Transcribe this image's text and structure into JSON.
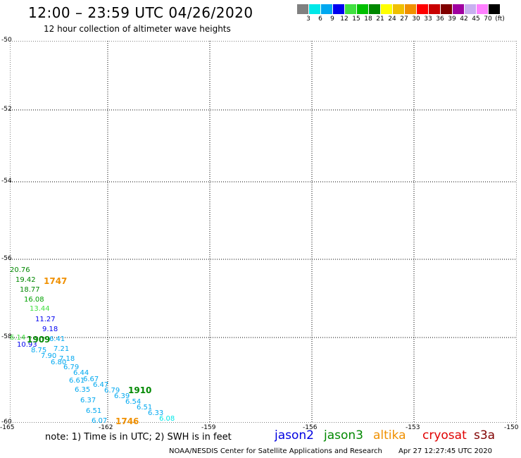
{
  "header": {
    "title": "12:00 – 23:59 UTC 04/26/2020",
    "subtitle": "12 hour collection of altimeter wave heights"
  },
  "legend": {
    "colors": [
      "#808080",
      "#00e8e8",
      "#00a8f0",
      "#0000f0",
      "#40e040",
      "#00c000",
      "#008800",
      "#ffff00",
      "#f0c000",
      "#f09000",
      "#ff0000",
      "#c80000",
      "#800000",
      "#a000a0",
      "#c8b0f0",
      "#ff80ff",
      "#000000"
    ],
    "labels": [
      "3",
      "6",
      "9",
      "12",
      "15",
      "18",
      "21",
      "24",
      "27",
      "30",
      "33",
      "36",
      "39",
      "42",
      "45",
      "70",
      "(ft)"
    ]
  },
  "map": {
    "lat_labels": [
      "-50",
      "-52",
      "-54",
      "-56",
      "-58",
      "-60"
    ],
    "lon_labels": [
      "-165",
      "-162",
      "-159",
      "-156",
      "-153",
      "-150"
    ],
    "observations": [
      {
        "text": "20.76",
        "color": "#008800"
      },
      {
        "text": "19.42",
        "color": "#008800"
      },
      {
        "text": "18.77",
        "color": "#008800"
      },
      {
        "text": "16.08",
        "color": "#00a000"
      },
      {
        "text": "13.44",
        "color": "#40e040"
      },
      {
        "text": "11.27",
        "color": "#0000f0"
      },
      {
        "text": "9.18",
        "color": "#0000f0"
      },
      {
        "text": "10.93",
        "color": "#0000f0"
      },
      {
        "text": "8.75",
        "color": "#00a8f0"
      },
      {
        "text": "7.90",
        "color": "#00a8f0"
      },
      {
        "text": "7.21",
        "color": "#00a8f0"
      },
      {
        "text": "7.18",
        "color": "#00a8f0"
      },
      {
        "text": "6.80",
        "color": "#00a8f0"
      },
      {
        "text": "6.79",
        "color": "#00a8f0"
      },
      {
        "text": "6.44",
        "color": "#00a8f0"
      },
      {
        "text": "6.67",
        "color": "#00a8f0"
      },
      {
        "text": "6.61",
        "color": "#00a8f0"
      },
      {
        "text": "6.47",
        "color": "#00a8f0"
      },
      {
        "text": "6.35",
        "color": "#00a8f0"
      },
      {
        "text": "6.79",
        "color": "#00a8f0"
      },
      {
        "text": "6.39",
        "color": "#00a8f0"
      },
      {
        "text": "6.54",
        "color": "#00a8f0"
      },
      {
        "text": "6.37",
        "color": "#00a8f0"
      },
      {
        "text": "6.51",
        "color": "#00a8f0"
      },
      {
        "text": "6.51",
        "color": "#00a8f0"
      },
      {
        "text": "6.33",
        "color": "#00a8f0"
      },
      {
        "text": "6.07",
        "color": "#00a8f0"
      },
      {
        "text": "6.08",
        "color": "#00e8e8"
      },
      {
        "text": "6.14",
        "color": "#40e040"
      },
      {
        "text": "6.41",
        "color": "#00a8f0"
      }
    ],
    "orbit_ids": [
      {
        "text": "1747",
        "color": "#f09000"
      },
      {
        "text": "1909",
        "color": "#008800"
      },
      {
        "text": "1910",
        "color": "#008800"
      },
      {
        "text": "1746",
        "color": "#f09000"
      }
    ]
  },
  "footer": {
    "note": "note: 1) Time is in UTC; 2) SWH is in feet",
    "satellites": [
      {
        "name": "jason2",
        "color": "#0000e0"
      },
      {
        "name": "jason3",
        "color": "#008800"
      },
      {
        "name": "altika",
        "color": "#f09000"
      },
      {
        "name": "cryosat",
        "color": "#e00000"
      },
      {
        "name": "s3a",
        "color": "#800000"
      }
    ],
    "credit": "NOAA/NESDIS Center for Satellite Applications and Research",
    "timestamp": "Apr 27 12:27:45 UTC 2020"
  }
}
